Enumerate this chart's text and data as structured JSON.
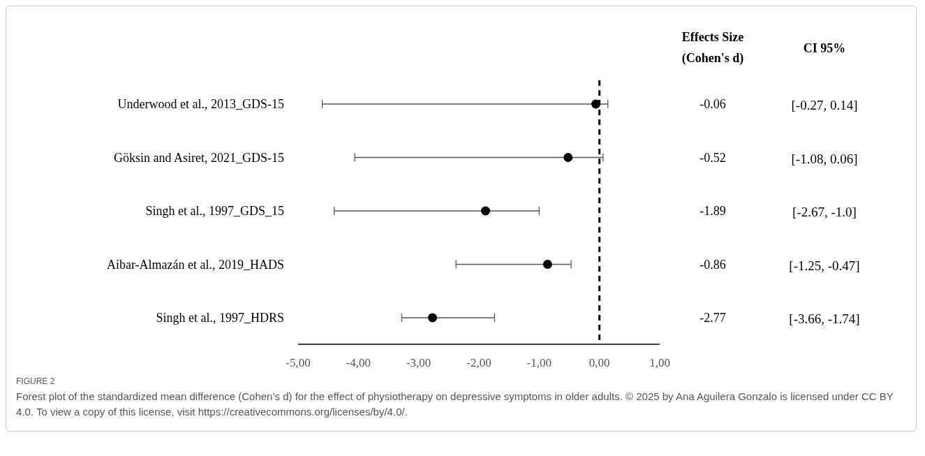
{
  "chart_data": {
    "type": "scatter",
    "categories": [
      "Underwood et al., 2013_GDS-15",
      "Göksin and Asiret, 2021_GDS-15",
      "Singh et al., 1997_GDS_15",
      "Aibar-Almazán et al., 2019_HADS",
      "Singh et al., 1997_HDRS"
    ],
    "series": [
      {
        "color": "#000000",
        "values": [
          -0.06,
          -0.52,
          -1.89,
          -0.86,
          -2.77
        ],
        "errors": [
          [
            -4.6,
            0.14
          ],
          [
            -4.06,
            0.06
          ],
          [
            -4.4,
            -1.0
          ],
          [
            -2.38,
            -0.47
          ],
          [
            -3.28,
            -1.74
          ]
        ]
      }
    ],
    "orientation": "horizontal",
    "data_labels": true,
    "marker": "circle",
    "xlim": [
      -5,
      1
    ],
    "xticks": [
      {
        "value": -5,
        "label": "-5,00"
      },
      {
        "value": -4,
        "label": "-4,00"
      },
      {
        "value": -3,
        "label": "-3,00"
      },
      {
        "value": -2,
        "label": "-2,00"
      },
      {
        "value": -1,
        "label": "-1,00"
      },
      {
        "value": 0,
        "label": "0,00"
      },
      {
        "value": 1,
        "label": "1,00"
      }
    ],
    "ref_lines": [
      {
        "axis": "x",
        "value": 0,
        "color": "#000000",
        "line_style": "dashed"
      }
    ],
    "annotations": [
      "Effects Size (Cohen's d)",
      "CI 95%",
      "[-0.27, 0.14]",
      "[-1.08, 0.06]",
      "[-2.67, -1.0]",
      "[-1.25, -0.47]",
      "[-3.66, -1.74]",
      "FIGURE 2",
      "Forest plot of the standardized mean difference (Cohen’s d) for the effect of physiotherapy on depressive symptoms in older adults. © 2025 by Ana Aguilera Gonzalo is licensed under CC BY 4.0. To view a copy of this license, visit https://creativecommons.org/licenses/by/4.0/."
    ]
  }
}
